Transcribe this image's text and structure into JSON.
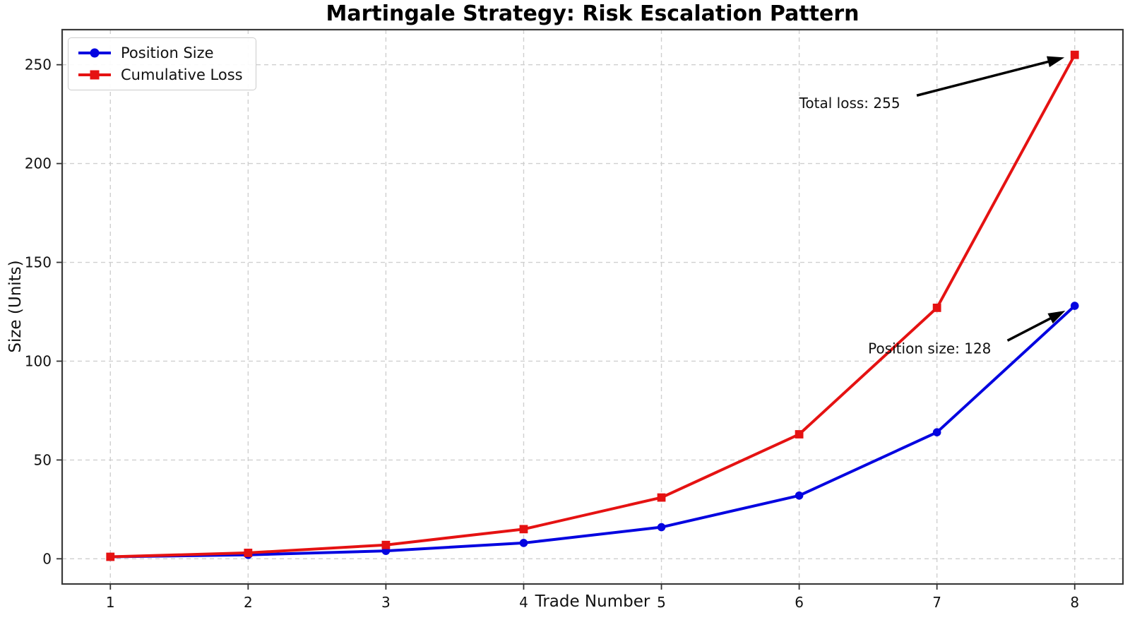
{
  "title": "Martingale Strategy: Risk Escalation Pattern",
  "chart_data": {
    "type": "line",
    "x": [
      1,
      2,
      3,
      4,
      5,
      6,
      7,
      8
    ],
    "series": [
      {
        "name": "Position Size",
        "values": [
          1,
          2,
          4,
          8,
          16,
          32,
          64,
          128
        ],
        "color": "#0404e0",
        "marker": "circle"
      },
      {
        "name": "Cumulative Loss",
        "values": [
          1,
          3,
          7,
          15,
          31,
          63,
          127,
          255
        ],
        "color": "#e51212",
        "marker": "square"
      }
    ],
    "xlabel": "Trade Number",
    "ylabel": "Size (Units)",
    "xlim": [
      0.65,
      8.35
    ],
    "ylim": [
      -12.75,
      267.75
    ],
    "xticks": [
      "1",
      "2",
      "3",
      "4",
      "5",
      "6",
      "7",
      "8"
    ],
    "yticks": [
      "0",
      "50",
      "100",
      "150",
      "200",
      "250"
    ],
    "xtick_values": [
      1,
      2,
      3,
      4,
      5,
      6,
      7,
      8
    ],
    "ytick_values": [
      0,
      50,
      100,
      150,
      200,
      250
    ],
    "grid": true,
    "legend_position": "upper-left",
    "annotations": [
      {
        "text": "Total loss: 255",
        "text_xy": [
          6.0,
          228
        ],
        "point_xy": [
          8,
          255
        ]
      },
      {
        "text": "Position size: 128",
        "text_xy": [
          6.5,
          104
        ],
        "point_xy": [
          8,
          128
        ]
      }
    ]
  }
}
